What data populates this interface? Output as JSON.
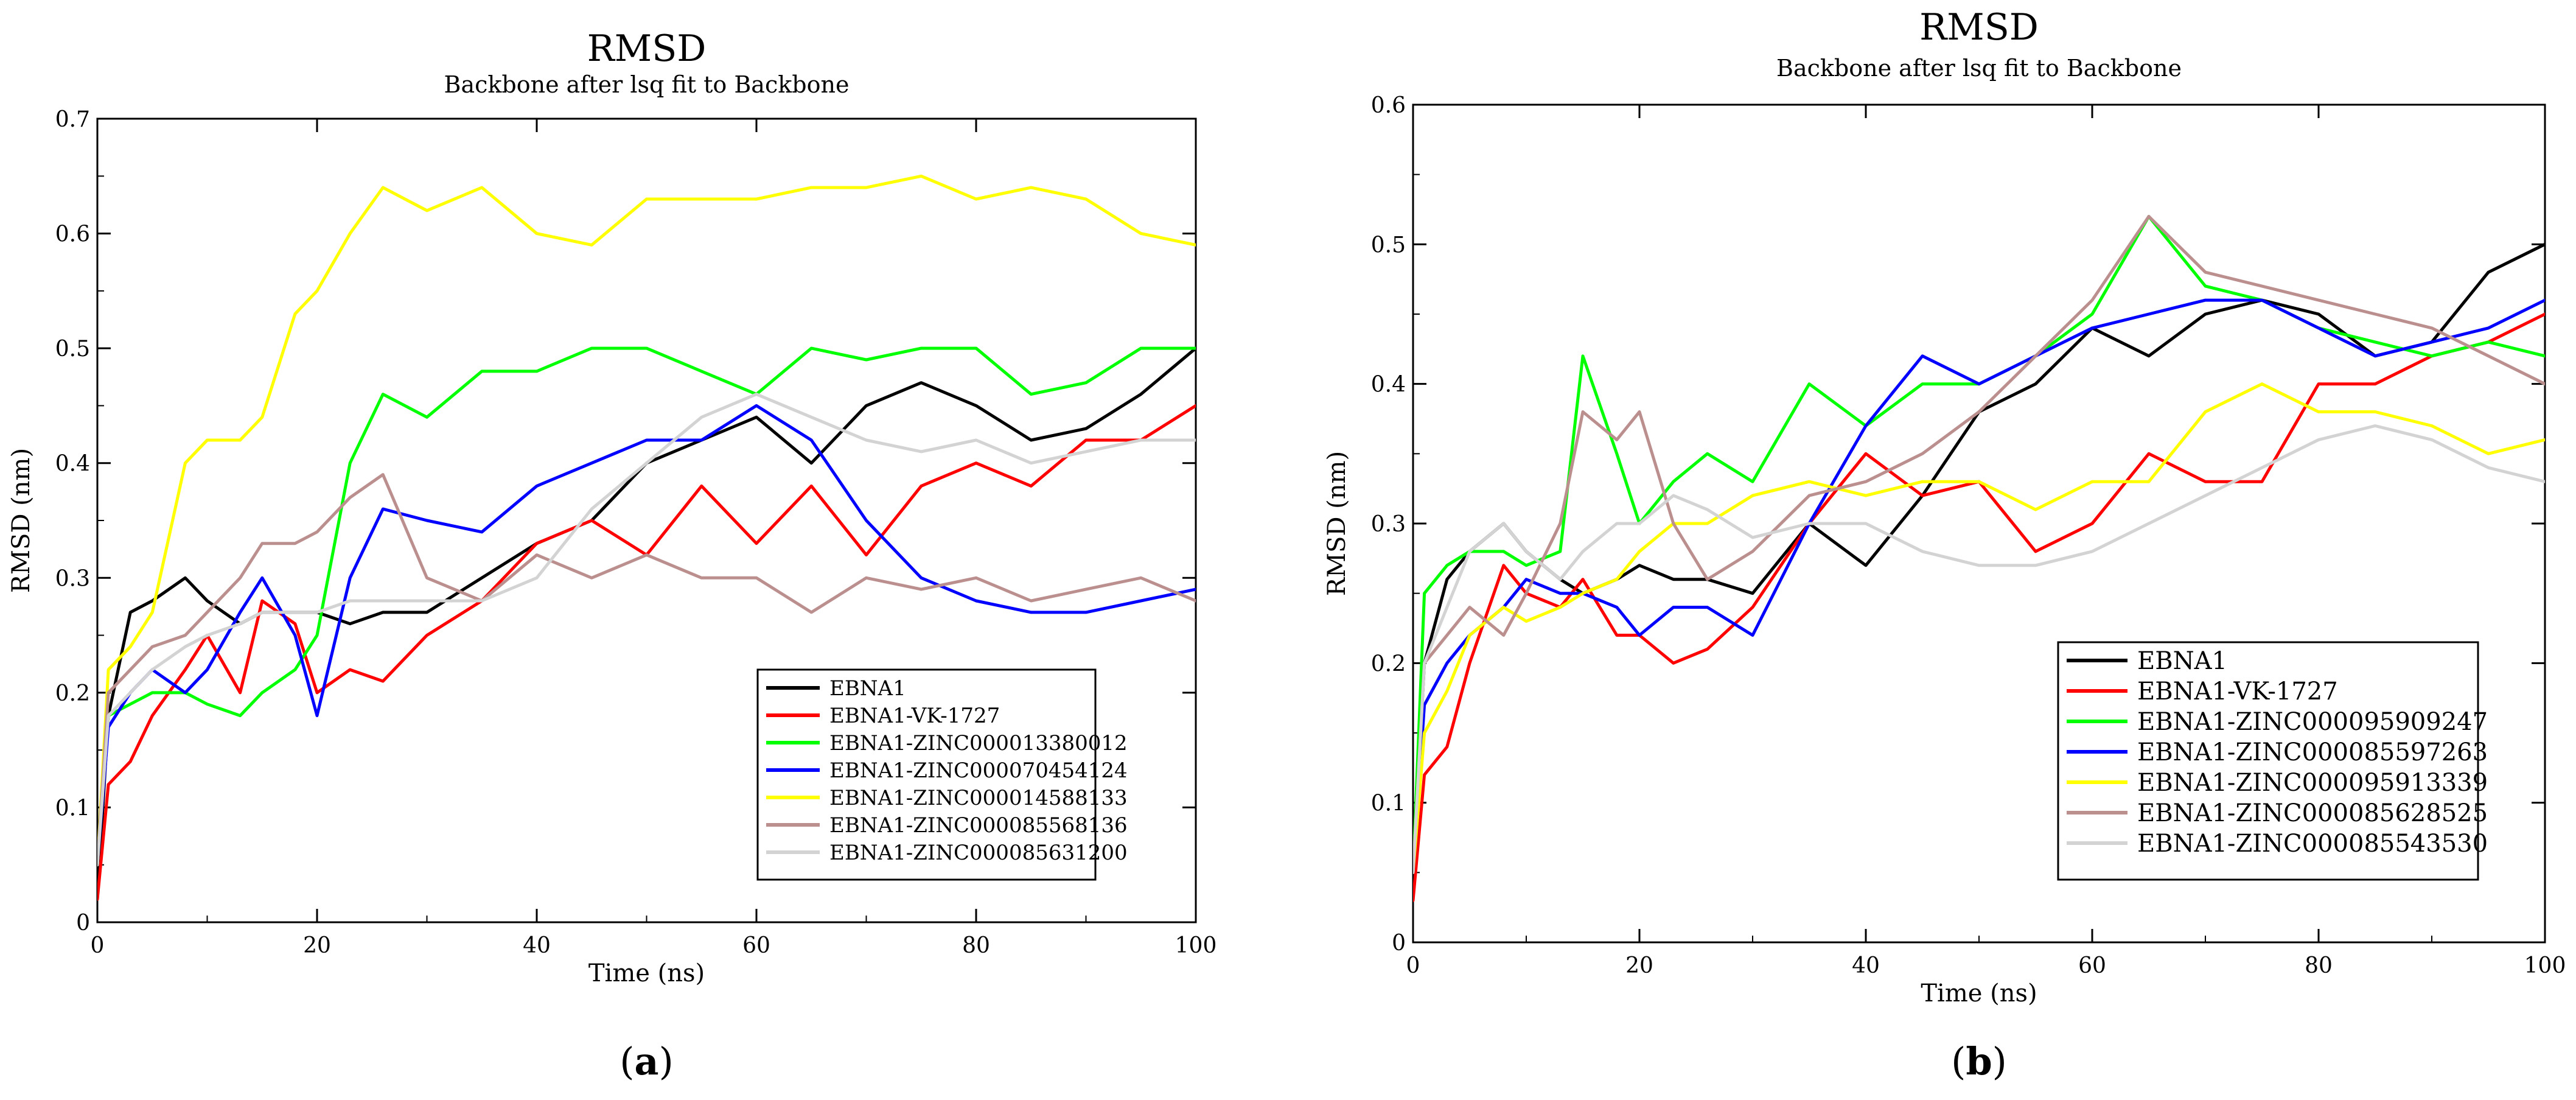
{
  "chart_data": [
    {
      "type": "line",
      "panel_label_open": "(",
      "panel_label_letter": "a",
      "panel_label_close": ")",
      "title": "RMSD",
      "subtitle": "Backbone after lsq fit to Backbone",
      "xlabel": "Time (ns)",
      "ylabel": "RMSD (nm)",
      "xlim": [
        0,
        100
      ],
      "ylim": [
        0,
        0.7
      ],
      "xticks": [
        "0",
        "20",
        "40",
        "60",
        "80",
        "100"
      ],
      "yticks": [
        "0",
        "0.1",
        "0.2",
        "0.3",
        "0.4",
        "0.5",
        "0.6",
        "0.7"
      ],
      "legend_position": "bottom-right",
      "x": [
        0,
        1,
        3,
        5,
        8,
        10,
        13,
        15,
        18,
        20,
        23,
        26,
        30,
        35,
        40,
        45,
        50,
        55,
        60,
        65,
        70,
        75,
        80,
        85,
        90,
        95,
        100
      ],
      "series": [
        {
          "name": "EBNA1",
          "color": "#000000",
          "values": [
            0.02,
            0.18,
            0.27,
            0.28,
            0.3,
            0.28,
            0.26,
            0.27,
            0.27,
            0.27,
            0.26,
            0.27,
            0.27,
            0.3,
            0.33,
            0.35,
            0.4,
            0.42,
            0.44,
            0.4,
            0.45,
            0.47,
            0.45,
            0.42,
            0.43,
            0.46,
            0.5
          ]
        },
        {
          "name": "EBNA1-VK-1727",
          "color": "#ff0000",
          "values": [
            0.02,
            0.12,
            0.14,
            0.18,
            0.22,
            0.25,
            0.2,
            0.28,
            0.26,
            0.2,
            0.22,
            0.21,
            0.25,
            0.28,
            0.33,
            0.35,
            0.32,
            0.38,
            0.33,
            0.38,
            0.32,
            0.38,
            0.4,
            0.38,
            0.42,
            0.42,
            0.45
          ]
        },
        {
          "name": "EBNA1-ZINC000013380012",
          "color": "#00ff00",
          "values": [
            0.05,
            0.18,
            0.19,
            0.2,
            0.2,
            0.19,
            0.18,
            0.2,
            0.22,
            0.25,
            0.4,
            0.46,
            0.44,
            0.48,
            0.48,
            0.5,
            0.5,
            0.48,
            0.46,
            0.5,
            0.49,
            0.5,
            0.5,
            0.46,
            0.47,
            0.5,
            0.5
          ]
        },
        {
          "name": "EBNA1-ZINC000070454124",
          "color": "#0000ff",
          "values": [
            0.05,
            0.17,
            0.2,
            0.22,
            0.2,
            0.22,
            0.27,
            0.3,
            0.25,
            0.18,
            0.3,
            0.36,
            0.35,
            0.34,
            0.38,
            0.4,
            0.42,
            0.42,
            0.45,
            0.42,
            0.35,
            0.3,
            0.28,
            0.27,
            0.27,
            0.28,
            0.29
          ]
        },
        {
          "name": "EBNA1-ZINC000014588133",
          "color": "#ffff00",
          "values": [
            0.05,
            0.22,
            0.24,
            0.27,
            0.4,
            0.42,
            0.42,
            0.44,
            0.53,
            0.55,
            0.6,
            0.64,
            0.62,
            0.64,
            0.6,
            0.59,
            0.63,
            0.63,
            0.63,
            0.64,
            0.64,
            0.65,
            0.63,
            0.64,
            0.63,
            0.6,
            0.59
          ]
        },
        {
          "name": "EBNA1-ZINC000085568136",
          "color": "#bc8f8f",
          "values": [
            0.05,
            0.2,
            0.22,
            0.24,
            0.25,
            0.27,
            0.3,
            0.33,
            0.33,
            0.34,
            0.37,
            0.39,
            0.3,
            0.28,
            0.32,
            0.3,
            0.32,
            0.3,
            0.3,
            0.27,
            0.3,
            0.29,
            0.3,
            0.28,
            0.29,
            0.3,
            0.28
          ]
        },
        {
          "name": "EBNA1-ZINC000085631200",
          "color": "#d3d3d3",
          "values": [
            0.05,
            0.18,
            0.2,
            0.22,
            0.24,
            0.25,
            0.26,
            0.27,
            0.27,
            0.27,
            0.28,
            0.28,
            0.28,
            0.28,
            0.3,
            0.36,
            0.4,
            0.44,
            0.46,
            0.44,
            0.42,
            0.41,
            0.42,
            0.4,
            0.41,
            0.42,
            0.42
          ]
        }
      ]
    },
    {
      "type": "line",
      "panel_label_open": "(",
      "panel_label_letter": "b",
      "panel_label_close": ")",
      "title": "RMSD",
      "subtitle": "Backbone after lsq fit to Backbone",
      "xlabel": "Time (ns)",
      "ylabel": "RMSD (nm)",
      "xlim": [
        0,
        100
      ],
      "ylim": [
        0,
        0.6
      ],
      "xticks": [
        "0",
        "20",
        "40",
        "60",
        "80",
        "100"
      ],
      "yticks": [
        "0",
        "0.1",
        "0.2",
        "0.3",
        "0.4",
        "0.5",
        "0.6"
      ],
      "legend_position": "bottom-right",
      "x": [
        0,
        1,
        3,
        5,
        8,
        10,
        13,
        15,
        18,
        20,
        23,
        26,
        30,
        35,
        40,
        45,
        50,
        55,
        60,
        65,
        70,
        75,
        80,
        85,
        90,
        95,
        100
      ],
      "series": [
        {
          "name": "EBNA1",
          "color": "#000000",
          "values": [
            0.05,
            0.2,
            0.26,
            0.28,
            0.3,
            0.28,
            0.26,
            0.25,
            0.26,
            0.27,
            0.26,
            0.26,
            0.25,
            0.3,
            0.27,
            0.32,
            0.38,
            0.4,
            0.44,
            0.42,
            0.45,
            0.46,
            0.45,
            0.42,
            0.43,
            0.48,
            0.5
          ]
        },
        {
          "name": "EBNA1-VK-1727",
          "color": "#ff0000",
          "values": [
            0.03,
            0.12,
            0.14,
            0.2,
            0.27,
            0.25,
            0.24,
            0.26,
            0.22,
            0.22,
            0.2,
            0.21,
            0.24,
            0.3,
            0.35,
            0.32,
            0.33,
            0.28,
            0.3,
            0.35,
            0.33,
            0.33,
            0.4,
            0.4,
            0.42,
            0.43,
            0.45
          ]
        },
        {
          "name": "EBNA1-ZINC000095909247",
          "color": "#00ff00",
          "values": [
            0.05,
            0.25,
            0.27,
            0.28,
            0.28,
            0.27,
            0.28,
            0.42,
            0.35,
            0.3,
            0.33,
            0.35,
            0.33,
            0.4,
            0.37,
            0.4,
            0.4,
            0.42,
            0.45,
            0.52,
            0.47,
            0.46,
            0.44,
            0.43,
            0.42,
            0.43,
            0.42
          ]
        },
        {
          "name": "EBNA1-ZINC000085597263",
          "color": "#0000ff",
          "values": [
            0.05,
            0.17,
            0.2,
            0.22,
            0.24,
            0.26,
            0.25,
            0.25,
            0.24,
            0.22,
            0.24,
            0.24,
            0.22,
            0.3,
            0.37,
            0.42,
            0.4,
            0.42,
            0.44,
            0.45,
            0.46,
            0.46,
            0.44,
            0.42,
            0.43,
            0.44,
            0.46
          ]
        },
        {
          "name": "EBNA1-ZINC000095913339",
          "color": "#ffff00",
          "values": [
            0.05,
            0.15,
            0.18,
            0.22,
            0.24,
            0.23,
            0.24,
            0.25,
            0.26,
            0.28,
            0.3,
            0.3,
            0.32,
            0.33,
            0.32,
            0.33,
            0.33,
            0.31,
            0.33,
            0.33,
            0.38,
            0.4,
            0.38,
            0.38,
            0.37,
            0.35,
            0.36
          ]
        },
        {
          "name": "EBNA1-ZINC000085628525",
          "color": "#bc8f8f",
          "values": [
            0.05,
            0.2,
            0.22,
            0.24,
            0.22,
            0.25,
            0.3,
            0.38,
            0.36,
            0.38,
            0.3,
            0.26,
            0.28,
            0.32,
            0.33,
            0.35,
            0.38,
            0.42,
            0.46,
            0.52,
            0.48,
            0.47,
            0.46,
            0.45,
            0.44,
            0.42,
            0.4
          ]
        },
        {
          "name": "EBNA1-ZINC000085543530",
          "color": "#d3d3d3",
          "values": [
            0.05,
            0.2,
            0.24,
            0.28,
            0.3,
            0.28,
            0.26,
            0.28,
            0.3,
            0.3,
            0.32,
            0.31,
            0.29,
            0.3,
            0.3,
            0.28,
            0.27,
            0.27,
            0.28,
            0.3,
            0.32,
            0.34,
            0.36,
            0.37,
            0.36,
            0.34,
            0.33
          ]
        }
      ]
    }
  ]
}
